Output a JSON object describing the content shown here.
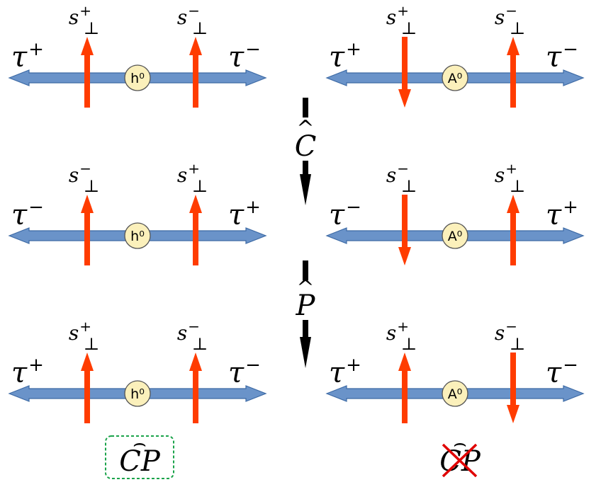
{
  "colors": {
    "axis": "#6a93c9",
    "axis_stroke": "#3d6aa5",
    "spin": "#ff3c00",
    "boson_fill": "#fbf0bb",
    "boson_stroke": "#555555",
    "allowed_box": "#1aa34a",
    "cross": "#e00000",
    "step_arrow": "#000000"
  },
  "spin_symbol": "s",
  "perp_symbol": "⊥",
  "rows": [
    {
      "left": {
        "left_tau": "+",
        "right_tau": "−",
        "s_left": "+",
        "s_right": "−",
        "boson": "h⁰",
        "spin_left": "up",
        "spin_right": "up"
      },
      "right": {
        "left_tau": "+",
        "right_tau": "−",
        "s_left": "+",
        "s_right": "−",
        "boson": "A⁰",
        "spin_left": "down",
        "spin_right": "up"
      }
    },
    {
      "left": {
        "left_tau": "−",
        "right_tau": "+",
        "s_left": "−",
        "s_right": "+",
        "boson": "h⁰",
        "spin_left": "up",
        "spin_right": "up"
      },
      "right": {
        "left_tau": "−",
        "right_tau": "+",
        "s_left": "−",
        "s_right": "+",
        "boson": "A⁰",
        "spin_left": "down",
        "spin_right": "up"
      }
    },
    {
      "left": {
        "left_tau": "+",
        "right_tau": "−",
        "s_left": "+",
        "s_right": "−",
        "boson": "h⁰",
        "spin_left": "up",
        "spin_right": "up"
      },
      "right": {
        "left_tau": "+",
        "right_tau": "−",
        "s_left": "+",
        "s_right": "−",
        "boson": "A⁰",
        "spin_left": "up",
        "spin_right": "down"
      }
    }
  ],
  "tau_symbol": "τ",
  "operators": [
    {
      "letter": "C",
      "hat": "^"
    },
    {
      "letter": "P",
      "hat": "^"
    }
  ],
  "results": {
    "left": {
      "text": "CP",
      "hat": "⌢",
      "allowed": true
    },
    "right": {
      "text": "CP",
      "hat": "⌢",
      "allowed": false
    }
  }
}
